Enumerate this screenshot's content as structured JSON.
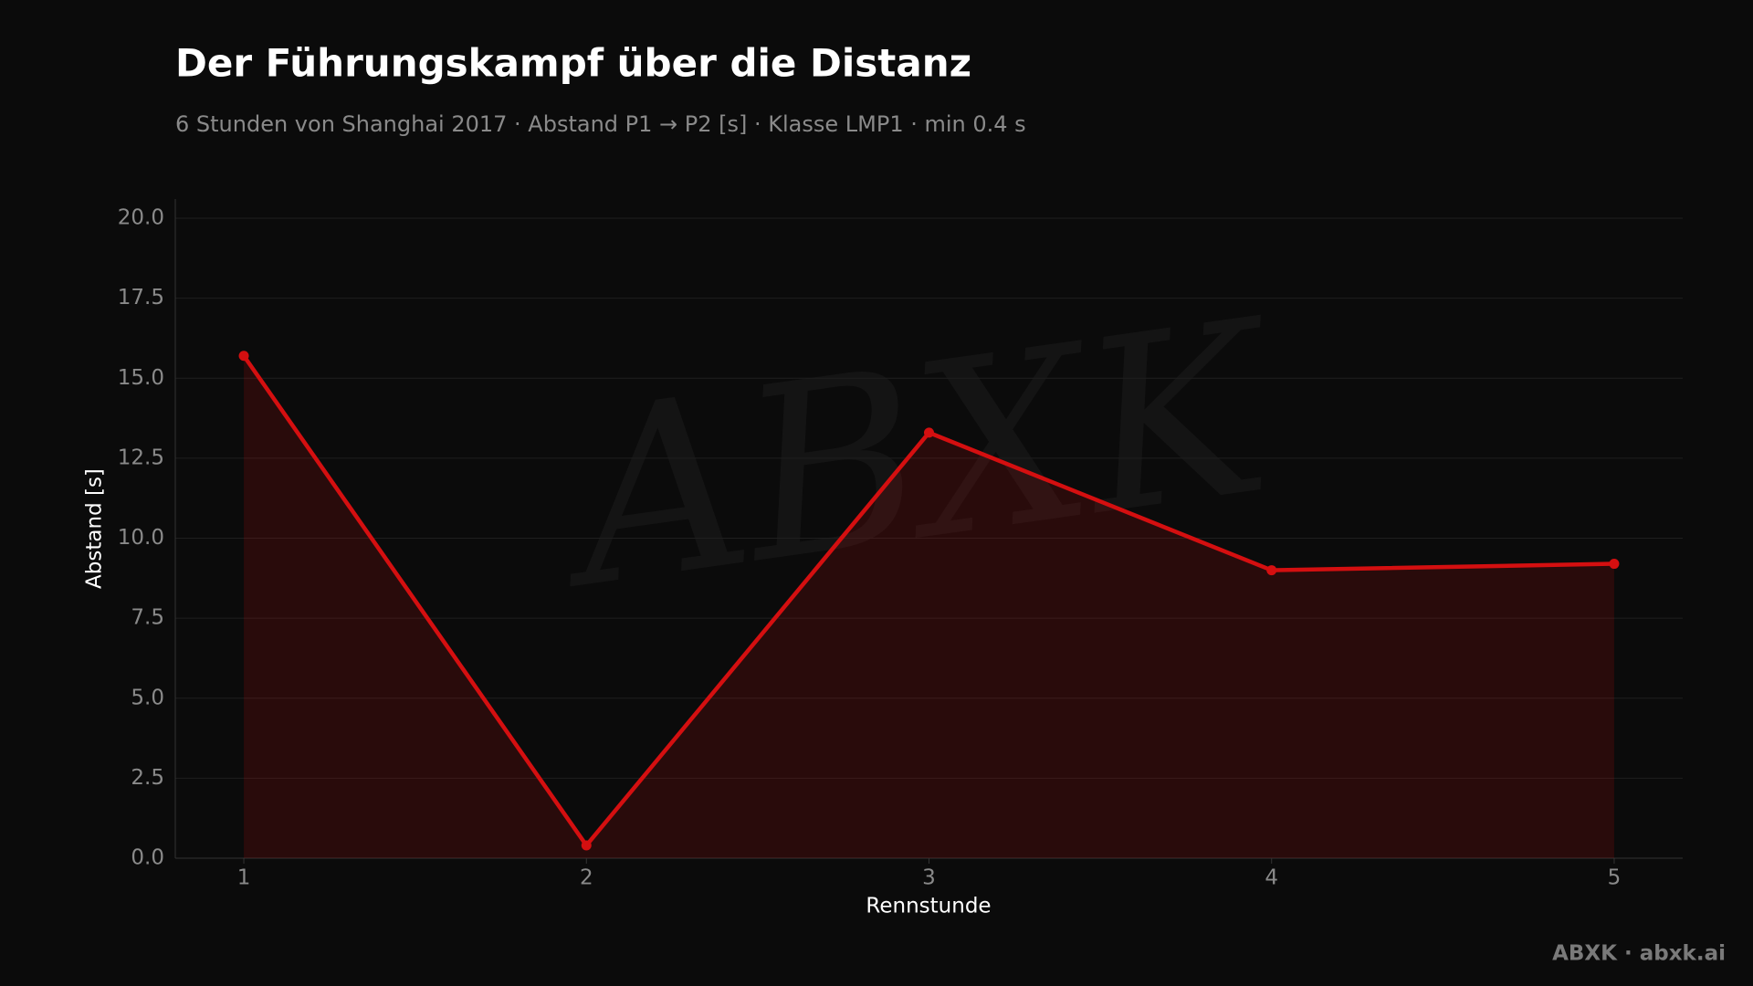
{
  "chart_data": {
    "type": "line",
    "title": "Der Führungskampf über die Distanz",
    "subtitle": "6 Stunden von Shanghai 2017 · Abstand P1 → P2 [s] · Klasse LMP1 · min 0.4 s",
    "xlabel": "Rennstunde",
    "ylabel": "Abstand [s]",
    "x": [
      1,
      2,
      3,
      4,
      5
    ],
    "series": [
      {
        "name": "Abstand P1 → P2",
        "color": "#d40f10",
        "values": [
          15.7,
          0.4,
          13.3,
          9.0,
          9.2
        ]
      }
    ],
    "xlim": [
      0.8,
      5.2
    ],
    "xticks": [
      1,
      2,
      3,
      4,
      5
    ],
    "ylim": [
      0,
      20.6
    ],
    "yticks": [
      {
        "value": 0,
        "label": "0.0"
      },
      {
        "value": 2.5,
        "label": "2.5"
      },
      {
        "value": 5,
        "label": "5.0"
      },
      {
        "value": 7.5,
        "label": "7.5"
      },
      {
        "value": 10,
        "label": "10.0"
      },
      {
        "value": 12.5,
        "label": "12.5"
      },
      {
        "value": 15,
        "label": "15.0"
      },
      {
        "value": 17.5,
        "label": "17.5"
      },
      {
        "value": 20,
        "label": "20.0"
      }
    ],
    "grid": true,
    "area": true,
    "watermark": "ABXK",
    "footer": "ABXK · abxk.ai"
  }
}
